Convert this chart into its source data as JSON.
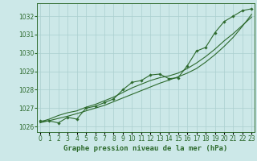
{
  "title": "Graphe pression niveau de la mer (hPa)",
  "x_values": [
    0,
    1,
    2,
    3,
    4,
    5,
    6,
    7,
    8,
    9,
    10,
    11,
    12,
    13,
    14,
    15,
    16,
    17,
    18,
    19,
    20,
    21,
    22,
    23
  ],
  "y_main": [
    1026.3,
    1026.3,
    1026.2,
    1026.5,
    1026.4,
    1027.0,
    1027.1,
    1027.3,
    1027.5,
    1028.0,
    1028.4,
    1028.5,
    1028.8,
    1028.85,
    1028.6,
    1028.65,
    1029.3,
    1030.1,
    1030.3,
    1031.1,
    1031.7,
    1032.0,
    1032.3,
    1032.4
  ],
  "y_smooth": [
    1026.25,
    1026.4,
    1026.6,
    1026.75,
    1026.85,
    1027.05,
    1027.2,
    1027.4,
    1027.6,
    1027.85,
    1028.1,
    1028.3,
    1028.5,
    1028.65,
    1028.75,
    1028.9,
    1029.15,
    1029.45,
    1029.8,
    1030.2,
    1030.65,
    1031.05,
    1031.5,
    1031.95
  ],
  "y_trend": [
    1026.2,
    1026.32,
    1026.44,
    1026.56,
    1026.7,
    1026.85,
    1027.0,
    1027.15,
    1027.35,
    1027.55,
    1027.75,
    1027.95,
    1028.15,
    1028.35,
    1028.52,
    1028.7,
    1028.9,
    1029.15,
    1029.5,
    1029.9,
    1030.35,
    1030.85,
    1031.45,
    1032.1
  ],
  "ylim": [
    1025.7,
    1032.7
  ],
  "yticks": [
    1026,
    1027,
    1028,
    1029,
    1030,
    1031,
    1032
  ],
  "xlim": [
    -0.3,
    23.3
  ],
  "line_color": "#2d6a2d",
  "bg_color": "#cce8e8",
  "grid_color": "#aacfcf",
  "title_fontsize": 6.5,
  "tick_fontsize": 5.5,
  "marker": "D",
  "marker_size": 1.8,
  "linewidth": 0.8
}
